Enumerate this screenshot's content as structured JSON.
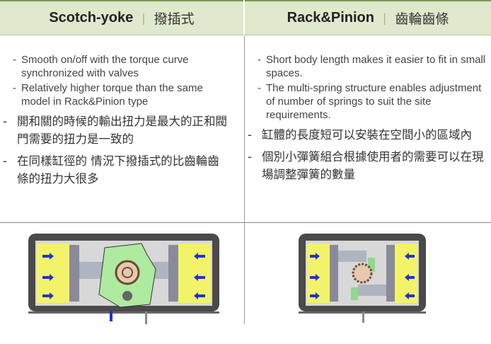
{
  "bullet_marker": "-",
  "separator": "|",
  "columns": [
    {
      "title": "Scotch-yoke",
      "subtitle": "撥插式",
      "bullets_en": [
        "Smooth on/off with the torque curve synchronized with valves",
        "Relatively higher torque than the same model in Rack&Pinion type"
      ],
      "bullets_zh": [
        "開和關的時候的輸出扭力是最大的正和閥門需要的扭力是一致的",
        "在同樣缸徑的 情況下撥插式的比齒輪齒條的扭力大很多"
      ]
    },
    {
      "title": "Rack&Pinion",
      "subtitle": "齒輪齒條",
      "bullets_en": [
        "Short body length makes it easier to fit in small spaces.",
        "The multi-spring structure enables adjustment of number of springs to suit the site requirements."
      ],
      "bullets_zh": [
        "缸體的長度短可以安裝在空間小的區域內",
        "個別小彈簧組合根據使用者的需要可以在現場調整彈簧的數量"
      ]
    }
  ]
}
